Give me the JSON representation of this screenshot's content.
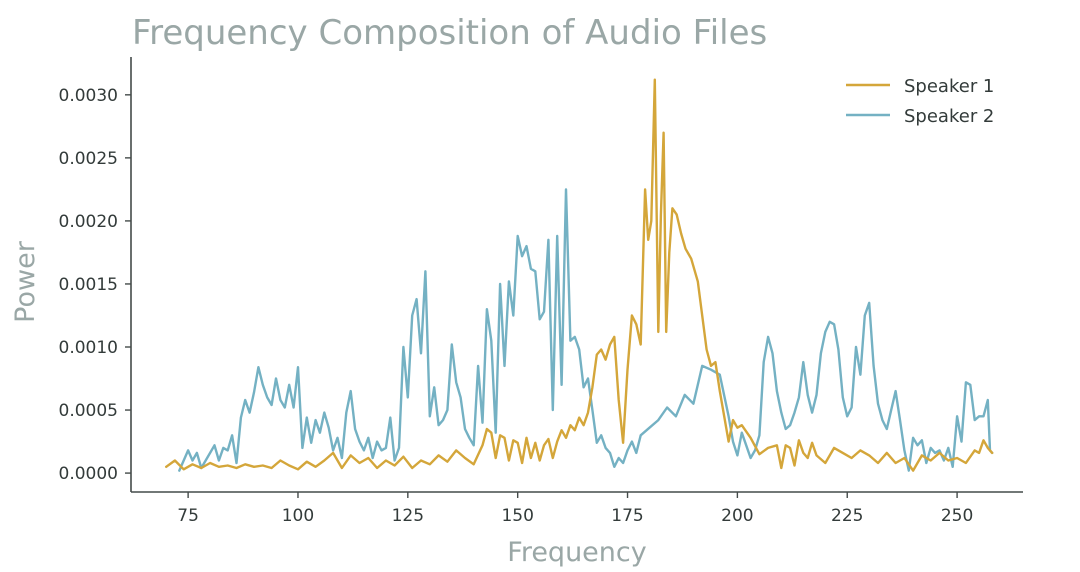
{
  "chart_data": {
    "type": "line",
    "title": "Frequency Composition of Audio Files",
    "xlabel": "Frequency",
    "ylabel": "Power",
    "xlim": [
      62,
      265
    ],
    "ylim": [
      -0.00015,
      0.0033
    ],
    "xticks": [
      75,
      100,
      125,
      150,
      175,
      200,
      225,
      250
    ],
    "xtick_labels": [
      "75",
      "100",
      "125",
      "150",
      "175",
      "200",
      "225",
      "250"
    ],
    "yticks": [
      0,
      0.0005,
      0.001,
      0.0015,
      0.002,
      0.0025,
      0.003
    ],
    "ytick_labels": [
      "0.0000",
      "0.0005",
      "0.0010",
      "0.0015",
      "0.0020",
      "0.0025",
      "0.0030"
    ],
    "grid": false,
    "legend": "top-right",
    "series": [
      {
        "name": "Speaker 1",
        "color": "#d4a63a",
        "points": [
          [
            70,
            5e-05
          ],
          [
            72,
            0.0001
          ],
          [
            74,
            3e-05
          ],
          [
            76,
            7e-05
          ],
          [
            78,
            4e-05
          ],
          [
            80,
            8e-05
          ],
          [
            82,
            5e-05
          ],
          [
            84,
            6e-05
          ],
          [
            86,
            4e-05
          ],
          [
            88,
            7e-05
          ],
          [
            90,
            5e-05
          ],
          [
            92,
            6e-05
          ],
          [
            94,
            4e-05
          ],
          [
            96,
            0.0001
          ],
          [
            98,
            6e-05
          ],
          [
            100,
            3e-05
          ],
          [
            102,
            9e-05
          ],
          [
            104,
            5e-05
          ],
          [
            106,
            0.0001
          ],
          [
            108,
            0.00016
          ],
          [
            110,
            4e-05
          ],
          [
            112,
            0.00014
          ],
          [
            114,
            8e-05
          ],
          [
            116,
            0.00012
          ],
          [
            118,
            4e-05
          ],
          [
            120,
            0.0001
          ],
          [
            122,
            6e-05
          ],
          [
            124,
            0.00013
          ],
          [
            126,
            4e-05
          ],
          [
            128,
            0.0001
          ],
          [
            130,
            7e-05
          ],
          [
            132,
            0.00014
          ],
          [
            134,
            9e-05
          ],
          [
            136,
            0.00018
          ],
          [
            138,
            0.00012
          ],
          [
            140,
            7e-05
          ],
          [
            142,
            0.00022
          ],
          [
            143,
            0.00035
          ],
          [
            144,
            0.00032
          ],
          [
            145,
            0.00012
          ],
          [
            146,
            0.0003
          ],
          [
            147,
            0.00028
          ],
          [
            148,
            0.0001
          ],
          [
            149,
            0.00026
          ],
          [
            150,
            0.00024
          ],
          [
            151,
            8e-05
          ],
          [
            152,
            0.00028
          ],
          [
            153,
            0.00012
          ],
          [
            154,
            0.00024
          ],
          [
            155,
            0.0001
          ],
          [
            156,
            0.00022
          ],
          [
            157,
            0.00027
          ],
          [
            158,
            0.00012
          ],
          [
            159,
            0.00025
          ],
          [
            160,
            0.00034
          ],
          [
            161,
            0.00028
          ],
          [
            162,
            0.00038
          ],
          [
            163,
            0.00034
          ],
          [
            164,
            0.00044
          ],
          [
            165,
            0.00038
          ],
          [
            166,
            0.00048
          ],
          [
            167,
            0.00068
          ],
          [
            168,
            0.00094
          ],
          [
            169,
            0.00098
          ],
          [
            170,
            0.0009
          ],
          [
            171,
            0.00102
          ],
          [
            172,
            0.00108
          ],
          [
            173,
            0.00058
          ],
          [
            174,
            0.00024
          ],
          [
            175,
            0.00082
          ],
          [
            176,
            0.00125
          ],
          [
            177,
            0.00118
          ],
          [
            178,
            0.00102
          ],
          [
            179,
            0.00225
          ],
          [
            179.7,
            0.00185
          ],
          [
            180.4,
            0.002
          ],
          [
            181.2,
            0.00312
          ],
          [
            182,
            0.00112
          ],
          [
            182.6,
            0.00205
          ],
          [
            183.2,
            0.0027
          ],
          [
            183.8,
            0.00112
          ],
          [
            184.5,
            0.00175
          ],
          [
            185.2,
            0.0021
          ],
          [
            186.2,
            0.00205
          ],
          [
            187.2,
            0.0019
          ],
          [
            188.2,
            0.00178
          ],
          [
            189.5,
            0.0017
          ],
          [
            191,
            0.00152
          ],
          [
            192,
            0.00125
          ],
          [
            193,
            0.00098
          ],
          [
            194,
            0.00085
          ],
          [
            195,
            0.00088
          ],
          [
            196,
            0.00065
          ],
          [
            197,
            0.00045
          ],
          [
            198,
            0.00025
          ],
          [
            199,
            0.00042
          ],
          [
            200,
            0.00036
          ],
          [
            201,
            0.00038
          ],
          [
            203,
            0.00028
          ],
          [
            205,
            0.00015
          ],
          [
            207,
            0.0002
          ],
          [
            209,
            0.00022
          ],
          [
            210,
            4e-05
          ],
          [
            211,
            0.00022
          ],
          [
            212,
            0.0002
          ],
          [
            213,
            6e-05
          ],
          [
            214,
            0.00026
          ],
          [
            215,
            0.00016
          ],
          [
            216,
            0.00012
          ],
          [
            217,
            0.00024
          ],
          [
            218,
            0.00014
          ],
          [
            220,
            8e-05
          ],
          [
            222,
            0.0002
          ],
          [
            224,
            0.00016
          ],
          [
            226,
            0.00012
          ],
          [
            228,
            0.00018
          ],
          [
            230,
            0.00014
          ],
          [
            232,
            8e-05
          ],
          [
            234,
            0.00016
          ],
          [
            236,
            8e-05
          ],
          [
            238,
            0.00012
          ],
          [
            240,
            2e-05
          ],
          [
            242,
            0.00014
          ],
          [
            244,
            0.0001
          ],
          [
            246,
            0.00016
          ],
          [
            248,
            0.0001
          ],
          [
            250,
            0.00012
          ],
          [
            252,
            8e-05
          ],
          [
            254,
            0.00018
          ],
          [
            255,
            0.00016
          ],
          [
            256,
            0.00026
          ],
          [
            257,
            0.0002
          ],
          [
            258,
            0.00016
          ]
        ]
      },
      {
        "name": "Speaker 2",
        "color": "#74b1c3",
        "points": [
          [
            73,
            2e-05
          ],
          [
            75,
            0.00018
          ],
          [
            76,
            0.0001
          ],
          [
            77,
            0.00016
          ],
          [
            78,
            4e-05
          ],
          [
            80,
            0.00016
          ],
          [
            81,
            0.00022
          ],
          [
            82,
            0.0001
          ],
          [
            83,
            0.0002
          ],
          [
            84,
            0.00018
          ],
          [
            85,
            0.0003
          ],
          [
            86,
            8e-05
          ],
          [
            87,
            0.00044
          ],
          [
            88,
            0.00058
          ],
          [
            89,
            0.00048
          ],
          [
            90,
            0.00064
          ],
          [
            91,
            0.00084
          ],
          [
            92,
            0.0007
          ],
          [
            93,
            0.0006
          ],
          [
            94,
            0.00054
          ],
          [
            95,
            0.00075
          ],
          [
            96,
            0.00058
          ],
          [
            97,
            0.00052
          ],
          [
            98,
            0.0007
          ],
          [
            99,
            0.00052
          ],
          [
            100,
            0.00084
          ],
          [
            101,
            0.0002
          ],
          [
            102,
            0.00044
          ],
          [
            103,
            0.00024
          ],
          [
            104,
            0.00042
          ],
          [
            105,
            0.00032
          ],
          [
            106,
            0.00048
          ],
          [
            107,
            0.00036
          ],
          [
            108,
            0.00018
          ],
          [
            109,
            0.00028
          ],
          [
            110,
            0.00012
          ],
          [
            111,
            0.00048
          ],
          [
            112,
            0.00065
          ],
          [
            113,
            0.00035
          ],
          [
            114,
            0.00025
          ],
          [
            115,
            0.00018
          ],
          [
            116,
            0.00028
          ],
          [
            117,
            0.00012
          ],
          [
            118,
            0.00025
          ],
          [
            119,
            0.00018
          ],
          [
            120,
            0.0002
          ],
          [
            121,
            0.00044
          ],
          [
            122,
            0.0001
          ],
          [
            123,
            0.0002
          ],
          [
            124,
            0.001
          ],
          [
            125,
            0.0006
          ],
          [
            126,
            0.00125
          ],
          [
            127,
            0.00138
          ],
          [
            128,
            0.00095
          ],
          [
            129,
            0.0016
          ],
          [
            130,
            0.00045
          ],
          [
            131,
            0.00068
          ],
          [
            132,
            0.00038
          ],
          [
            133,
            0.00042
          ],
          [
            134,
            0.0005
          ],
          [
            135,
            0.00102
          ],
          [
            136,
            0.00072
          ],
          [
            137,
            0.0006
          ],
          [
            138,
            0.00035
          ],
          [
            139,
            0.00028
          ],
          [
            140,
            0.00022
          ],
          [
            141,
            0.00085
          ],
          [
            142,
            0.0004
          ],
          [
            143,
            0.0013
          ],
          [
            144,
            0.00105
          ],
          [
            145,
            0.00032
          ],
          [
            146,
            0.0015
          ],
          [
            147,
            0.00085
          ],
          [
            148,
            0.00152
          ],
          [
            149,
            0.00125
          ],
          [
            150,
            0.00188
          ],
          [
            151,
            0.00172
          ],
          [
            152,
            0.0018
          ],
          [
            153,
            0.00162
          ],
          [
            154,
            0.0016
          ],
          [
            155,
            0.00122
          ],
          [
            156,
            0.00128
          ],
          [
            157,
            0.00185
          ],
          [
            158,
            0.0005
          ],
          [
            159,
            0.00188
          ],
          [
            160,
            0.0007
          ],
          [
            161,
            0.00225
          ],
          [
            162,
            0.00105
          ],
          [
            163,
            0.00108
          ],
          [
            164,
            0.00098
          ],
          [
            165,
            0.00068
          ],
          [
            166,
            0.00075
          ],
          [
            167,
            0.0005
          ],
          [
            168,
            0.00024
          ],
          [
            169,
            0.0003
          ],
          [
            170,
            0.0002
          ],
          [
            171,
            0.00016
          ],
          [
            172,
            5e-05
          ],
          [
            173,
            0.00012
          ],
          [
            174,
            8e-05
          ],
          [
            175,
            0.00018
          ],
          [
            176,
            0.00025
          ],
          [
            177,
            0.00016
          ],
          [
            178,
            0.0003
          ],
          [
            180,
            0.00036
          ],
          [
            182,
            0.00042
          ],
          [
            184,
            0.00052
          ],
          [
            186,
            0.00045
          ],
          [
            188,
            0.00062
          ],
          [
            190,
            0.00055
          ],
          [
            192,
            0.00085
          ],
          [
            194,
            0.00082
          ],
          [
            196,
            0.00078
          ],
          [
            198,
            0.00045
          ],
          [
            199,
            0.00025
          ],
          [
            200,
            0.00014
          ],
          [
            201,
            0.00032
          ],
          [
            202,
            0.00022
          ],
          [
            203,
            0.00012
          ],
          [
            204,
            0.00018
          ],
          [
            205,
            0.0003
          ],
          [
            206,
            0.00088
          ],
          [
            207,
            0.00108
          ],
          [
            208,
            0.00095
          ],
          [
            209,
            0.00065
          ],
          [
            210,
            0.00048
          ],
          [
            211,
            0.00035
          ],
          [
            212,
            0.00038
          ],
          [
            213,
            0.00048
          ],
          [
            214,
            0.0006
          ],
          [
            215,
            0.00088
          ],
          [
            216,
            0.00062
          ],
          [
            217,
            0.00048
          ],
          [
            218,
            0.00062
          ],
          [
            219,
            0.00095
          ],
          [
            220,
            0.00112
          ],
          [
            221,
            0.0012
          ],
          [
            222,
            0.00118
          ],
          [
            223,
            0.00098
          ],
          [
            224,
            0.0006
          ],
          [
            225,
            0.00045
          ],
          [
            226,
            0.00052
          ],
          [
            227,
            0.001
          ],
          [
            228,
            0.00078
          ],
          [
            229,
            0.00125
          ],
          [
            230,
            0.00135
          ],
          [
            231,
            0.00085
          ],
          [
            232,
            0.00055
          ],
          [
            233,
            0.00042
          ],
          [
            234,
            0.00035
          ],
          [
            235,
            0.0005
          ],
          [
            236,
            0.00065
          ],
          [
            237,
            0.00042
          ],
          [
            238,
            0.00018
          ],
          [
            239,
            2e-05
          ],
          [
            240,
            0.00028
          ],
          [
            241,
            0.00022
          ],
          [
            242,
            0.00026
          ],
          [
            243,
            8e-05
          ],
          [
            244,
            0.0002
          ],
          [
            245,
            0.00016
          ],
          [
            246,
            0.00018
          ],
          [
            247,
            0.0001
          ],
          [
            248,
            0.0002
          ],
          [
            249,
            5e-05
          ],
          [
            250,
            0.00045
          ],
          [
            251,
            0.00025
          ],
          [
            252,
            0.00072
          ],
          [
            253,
            0.0007
          ],
          [
            254,
            0.00042
          ],
          [
            255,
            0.00045
          ],
          [
            256,
            0.00045
          ],
          [
            257,
            0.00058
          ],
          [
            257.5,
            0.00018
          ],
          [
            258,
            0.00016
          ]
        ]
      }
    ]
  }
}
